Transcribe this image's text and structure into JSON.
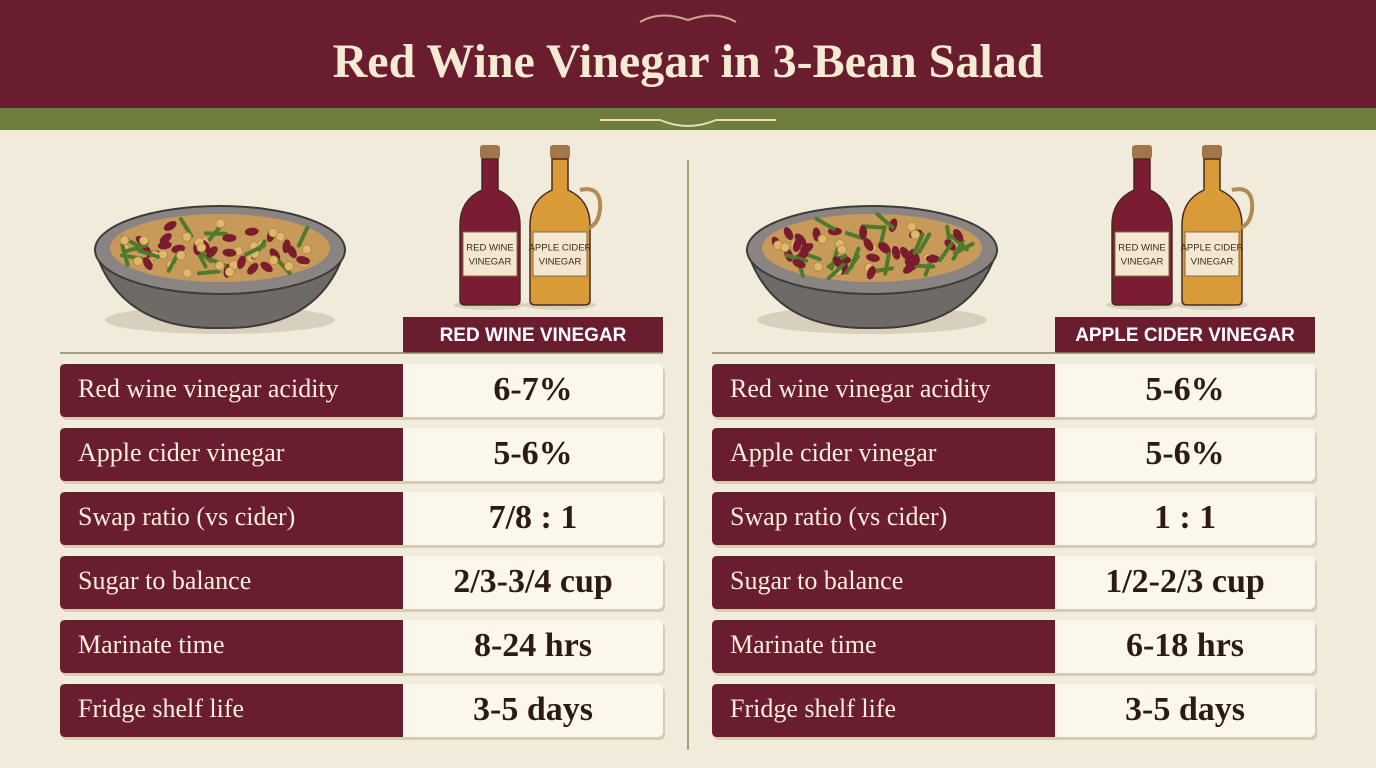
{
  "header": {
    "title": "Red Wine Vinegar in 3-Bean Salad"
  },
  "panels": [
    {
      "column_header": "RED WINE VINEGAR",
      "bottle_labels": [
        [
          "RED WINE",
          "VINEGAR"
        ],
        [
          "APPLE CIDER",
          "VINEGAR"
        ]
      ],
      "rows": [
        [
          "Red wine vinegar acidity",
          "6-7%"
        ],
        [
          "Apple cider vinegar",
          "5-6%"
        ],
        [
          "Swap ratio (vs cider)",
          "7/8 : 1"
        ],
        [
          "Sugar to balance",
          "2/3-3/4 cup"
        ],
        [
          "Marinate time",
          "8-24 hrs"
        ],
        [
          "Fridge shelf life",
          "3-5 days"
        ]
      ]
    },
    {
      "column_header": "APPLE CIDER VINEGAR",
      "bottle_labels": [
        [
          "RED WINE",
          "VINEGAR"
        ],
        [
          "APPLE CIDER",
          "VINEGAR"
        ]
      ],
      "rows": [
        [
          "Red wine vinegar acidity",
          "5-6%"
        ],
        [
          "Apple cider vinegar",
          "5-6%"
        ],
        [
          "Swap ratio (vs cider)",
          "1 : 1"
        ],
        [
          "Sugar to balance",
          "1/2-2/3 cup"
        ],
        [
          "Marinate time",
          "6-18 hrs"
        ],
        [
          "Fridge shelf life",
          "3-5 days"
        ]
      ]
    }
  ]
}
